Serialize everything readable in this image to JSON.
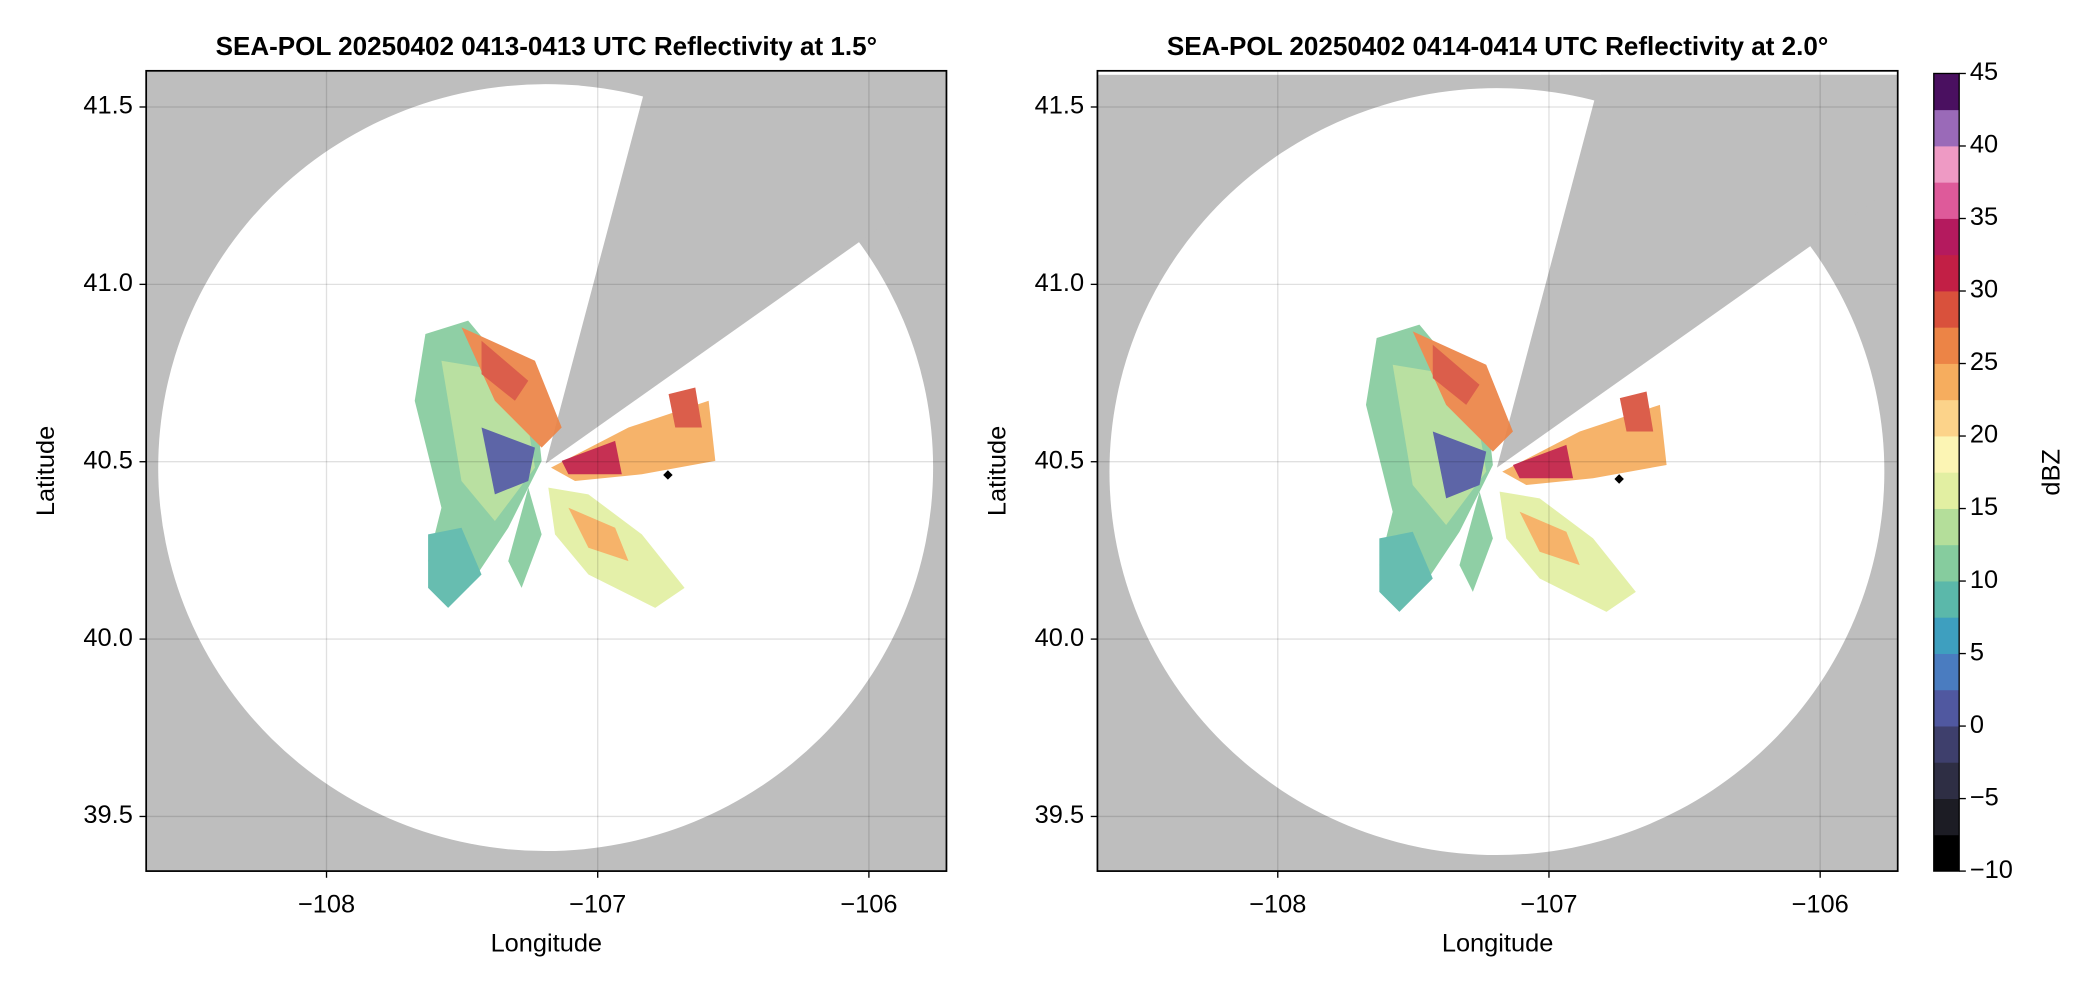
{
  "chart_data": [
    {
      "type": "heatmap",
      "title": "SEA-POL 20250402 0413-0413 UTC Reflectivity at 1.5°",
      "xlabel": "Longitude",
      "ylabel": "Latitude",
      "xlim": [
        -108.665,
        -105.714
      ],
      "ylim": [
        39.346,
        41.602
      ],
      "xticks": [
        {
          "value": -108,
          "label": "−108"
        },
        {
          "value": -107,
          "label": "−107"
        },
        {
          "value": -106,
          "label": "−106"
        }
      ],
      "yticks": [
        39.5,
        {
          "value": 40.0,
          "label": "40.0"
        },
        40.5,
        {
          "value": 41.0,
          "label": "41.0"
        },
        41.5
      ],
      "grid": true
    },
    {
      "type": "heatmap",
      "title": "SEA-POL 20250402 0414-0414 UTC Reflectivity at 2.0°",
      "xlabel": "Longitude",
      "ylabel": "Latitude",
      "xlim": [
        -108.665,
        -105.714
      ],
      "ylim": [
        39.346,
        41.602
      ],
      "xticks": [
        {
          "value": -108,
          "label": "−108"
        },
        {
          "value": -107,
          "label": "−107"
        },
        {
          "value": -106,
          "label": "−106"
        }
      ],
      "yticks": [
        39.5,
        {
          "value": 40.0,
          "label": "40.0"
        },
        40.5,
        {
          "value": 41.0,
          "label": "41.0"
        },
        41.5
      ],
      "grid": true,
      "colorbar": {
        "label": "dBZ",
        "lim": [
          -10,
          45
        ],
        "ticks": [
          {
            "value": -10,
            "label": "−10"
          },
          {
            "value": -5,
            "label": "−5"
          },
          0,
          5,
          10,
          15,
          20,
          25,
          30,
          35,
          40,
          45
        ],
        "colors": [
          "#000000",
          "#1c1c24",
          "#2e2e44",
          "#3e3f6c",
          "#5058a0",
          "#4a7cc0",
          "#3e9fbf",
          "#5bb8aa",
          "#86cc9e",
          "#b4de9a",
          "#e2efa2",
          "#fcf5b4",
          "#fcd38a",
          "#f6ad5e",
          "#ec8446",
          "#d9513c",
          "#c21f45",
          "#b41a5e",
          "#de5a9a",
          "#ee9ac4",
          "#9a6ab8",
          "#4a1060"
        ]
      }
    }
  ]
}
